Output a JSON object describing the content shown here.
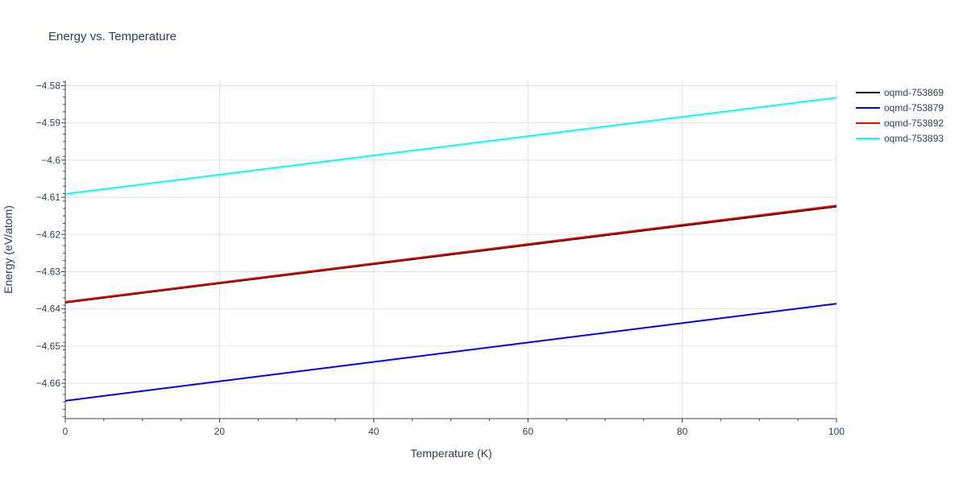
{
  "chart_data": {
    "type": "line",
    "title": "Energy vs. Temperature",
    "xlabel": "Temperature (K)",
    "ylabel": "Energy (eV/atom)",
    "xlim": [
      0,
      100
    ],
    "ylim": [
      -4.6695,
      -4.5786
    ],
    "x_ticks": [
      0,
      20,
      40,
      60,
      80,
      100
    ],
    "x_tick_labels": [
      "0",
      "20",
      "40",
      "60",
      "80",
      "100"
    ],
    "y_ticks": [
      -4.58,
      -4.59,
      -4.6,
      -4.61,
      -4.62,
      -4.63,
      -4.64,
      -4.65,
      -4.66
    ],
    "y_tick_labels": [
      "−4.58",
      "−4.59",
      "−4.6",
      "−4.61",
      "−4.62",
      "−4.63",
      "−4.64",
      "−4.65",
      "−4.66"
    ],
    "grid": true,
    "legend_position": "top-right",
    "series": [
      {
        "name": "oqmd-753869",
        "color": "#000000",
        "x": [
          0,
          100
        ],
        "y": [
          -4.6383,
          -4.6125
        ]
      },
      {
        "name": "oqmd-753879",
        "color": "#0000ff",
        "x": [
          0,
          100
        ],
        "y": [
          -4.6647,
          -4.6386
        ]
      },
      {
        "name": "oqmd-753892",
        "color": "#ff0000",
        "x": [
          0,
          100
        ],
        "y": [
          -4.6381,
          -4.6122
        ]
      },
      {
        "name": "oqmd-753893",
        "color": "#00ffff",
        "x": [
          0,
          100
        ],
        "y": [
          -4.6091,
          -4.5832
        ]
      }
    ]
  }
}
